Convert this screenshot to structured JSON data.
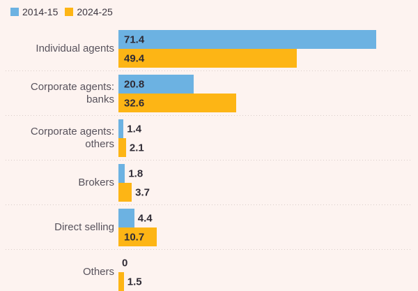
{
  "legend": {
    "items": [
      {
        "label": "2014-15",
        "color": "#6CB2E2"
      },
      {
        "label": "2024-25",
        "color": "#FDB515"
      }
    ],
    "position": "top-left"
  },
  "chart_data": {
    "type": "bar",
    "orientation": "horizontal",
    "title": "",
    "categories": [
      "Individual agents",
      "Corporate agents: banks",
      "Corporate agents: others",
      "Brokers",
      "Direct selling",
      "Others"
    ],
    "series": [
      {
        "name": "2014-15",
        "color": "#6CB2E2",
        "values": [
          71.4,
          20.8,
          1.4,
          1.8,
          4.4,
          0
        ]
      },
      {
        "name": "2024-25",
        "color": "#FDB515",
        "values": [
          49.4,
          32.6,
          2.1,
          3.7,
          10.7,
          1.5
        ]
      }
    ],
    "value_labels": [
      [
        "71.4",
        "49.4"
      ],
      [
        "20.8",
        "32.6"
      ],
      [
        "1.4",
        "2.1"
      ],
      [
        "1.8",
        "3.7"
      ],
      [
        "4.4",
        "10.7"
      ],
      [
        "0",
        "1.5"
      ]
    ],
    "xlim": [
      0,
      77
    ],
    "grid": "dotted horizontal separators between category groups",
    "legend_position": "top-left",
    "value_labels_shown": true,
    "notes": "Last category (Others) is clipped at the bottom edge of the image"
  },
  "colors": {
    "background": "#FDF3F0",
    "separator": "#D8CCC8",
    "category_label": "#57525C",
    "value_label": "#2F2B35",
    "legend_text": "#3B3640"
  }
}
